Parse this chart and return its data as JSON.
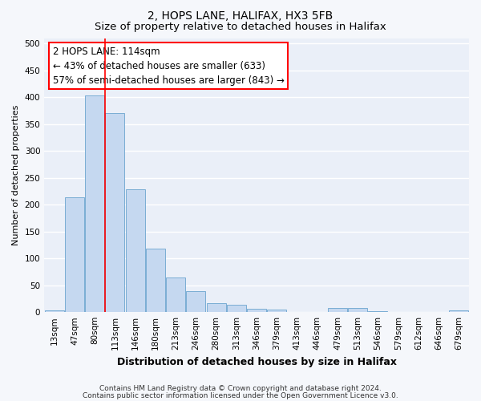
{
  "title1": "2, HOPS LANE, HALIFAX, HX3 5FB",
  "title2": "Size of property relative to detached houses in Halifax",
  "xlabel": "Distribution of detached houses by size in Halifax",
  "ylabel": "Number of detached properties",
  "categories": [
    "13sqm",
    "47sqm",
    "80sqm",
    "113sqm",
    "146sqm",
    "180sqm",
    "213sqm",
    "246sqm",
    "280sqm",
    "313sqm",
    "346sqm",
    "379sqm",
    "413sqm",
    "446sqm",
    "479sqm",
    "513sqm",
    "546sqm",
    "579sqm",
    "612sqm",
    "646sqm",
    "679sqm"
  ],
  "values": [
    3,
    214,
    403,
    370,
    228,
    118,
    65,
    39,
    17,
    13,
    6,
    5,
    0,
    0,
    7,
    7,
    2,
    0,
    0,
    0,
    3
  ],
  "bar_color": "#c5d8f0",
  "bar_edge_color": "#7aadd4",
  "red_line_x": 3.5,
  "annotation_line1": "2 HOPS LANE: 114sqm",
  "annotation_line2": "← 43% of detached houses are smaller (633)",
  "annotation_line3": "57% of semi-detached houses are larger (843) →",
  "annotation_box_color": "white",
  "annotation_box_edge": "red",
  "ylim": [
    0,
    510
  ],
  "yticks": [
    0,
    50,
    100,
    150,
    200,
    250,
    300,
    350,
    400,
    450,
    500
  ],
  "footer1": "Contains HM Land Registry data © Crown copyright and database right 2024.",
  "footer2": "Contains public sector information licensed under the Open Government Licence v3.0.",
  "fig_bg_color": "#f5f7fb",
  "plot_bg_color": "#eaeff8",
  "grid_color": "#ffffff",
  "title1_fontsize": 10,
  "title2_fontsize": 9.5,
  "xlabel_fontsize": 9,
  "ylabel_fontsize": 8,
  "annot_fontsize": 8.5,
  "tick_fontsize": 7.5,
  "footer_fontsize": 6.5
}
